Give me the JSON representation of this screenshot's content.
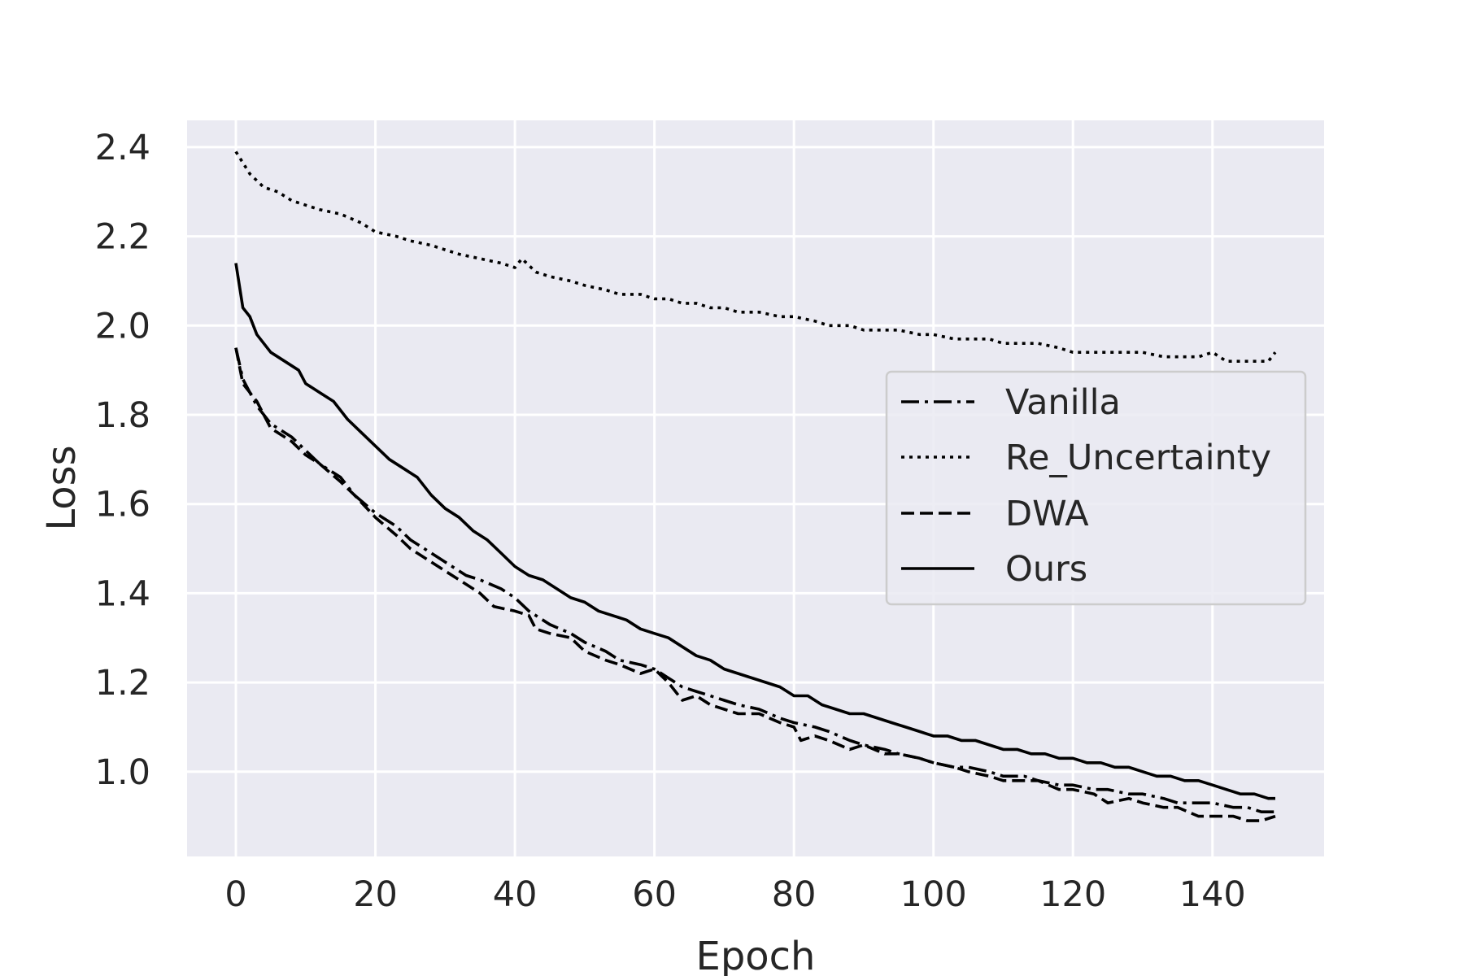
{
  "chart_data": {
    "type": "line",
    "title": "",
    "xlabel": "Epoch",
    "ylabel": "Loss",
    "xlim": [
      -7,
      156
    ],
    "ylim": [
      0.81,
      2.46
    ],
    "xticks": [
      0,
      20,
      40,
      60,
      80,
      100,
      120,
      140
    ],
    "yticks": [
      1.0,
      1.2,
      1.4,
      1.6,
      1.8,
      2.0,
      2.2,
      2.4
    ],
    "xtick_labels": [
      "0",
      "20",
      "40",
      "60",
      "80",
      "100",
      "120",
      "140"
    ],
    "ytick_labels": [
      "1.0",
      "1.2",
      "1.4",
      "1.6",
      "1.8",
      "2.0",
      "2.2",
      "2.4"
    ],
    "grid": true,
    "legend_position": "center-right",
    "colors": {
      "plot_background": "#eaeaf2",
      "grid": "#ffffff",
      "line": "#000000",
      "text": "#262626"
    },
    "series": [
      {
        "name": "Vanilla",
        "style": "dashdot",
        "points": [
          [
            0,
            1.95
          ],
          [
            1,
            1.88
          ],
          [
            3,
            1.82
          ],
          [
            5,
            1.78
          ],
          [
            8,
            1.75
          ],
          [
            10,
            1.72
          ],
          [
            12,
            1.69
          ],
          [
            15,
            1.66
          ],
          [
            17,
            1.62
          ],
          [
            20,
            1.58
          ],
          [
            23,
            1.55
          ],
          [
            25,
            1.52
          ],
          [
            28,
            1.49
          ],
          [
            30,
            1.47
          ],
          [
            33,
            1.44
          ],
          [
            35,
            1.43
          ],
          [
            38,
            1.41
          ],
          [
            40,
            1.39
          ],
          [
            42,
            1.36
          ],
          [
            45,
            1.33
          ],
          [
            48,
            1.31
          ],
          [
            50,
            1.29
          ],
          [
            53,
            1.27
          ],
          [
            55,
            1.25
          ],
          [
            58,
            1.24
          ],
          [
            60,
            1.23
          ],
          [
            62,
            1.21
          ],
          [
            64,
            1.19
          ],
          [
            66,
            1.18
          ],
          [
            68,
            1.17
          ],
          [
            70,
            1.16
          ],
          [
            72,
            1.15
          ],
          [
            75,
            1.14
          ],
          [
            78,
            1.12
          ],
          [
            80,
            1.11
          ],
          [
            83,
            1.1
          ],
          [
            85,
            1.09
          ],
          [
            88,
            1.07
          ],
          [
            90,
            1.06
          ],
          [
            93,
            1.05
          ],
          [
            95,
            1.04
          ],
          [
            98,
            1.03
          ],
          [
            100,
            1.02
          ],
          [
            103,
            1.01
          ],
          [
            105,
            1.01
          ],
          [
            108,
            1.0
          ],
          [
            110,
            0.99
          ],
          [
            113,
            0.99
          ],
          [
            115,
            0.98
          ],
          [
            118,
            0.97
          ],
          [
            120,
            0.97
          ],
          [
            123,
            0.96
          ],
          [
            125,
            0.96
          ],
          [
            128,
            0.95
          ],
          [
            130,
            0.95
          ],
          [
            133,
            0.94
          ],
          [
            135,
            0.93
          ],
          [
            138,
            0.93
          ],
          [
            140,
            0.93
          ],
          [
            143,
            0.92
          ],
          [
            145,
            0.92
          ],
          [
            147,
            0.91
          ],
          [
            149,
            0.91
          ]
        ]
      },
      {
        "name": "Re_Uncertainty",
        "style": "dotted",
        "points": [
          [
            0,
            2.39
          ],
          [
            2,
            2.34
          ],
          [
            4,
            2.31
          ],
          [
            6,
            2.3
          ],
          [
            8,
            2.28
          ],
          [
            10,
            2.27
          ],
          [
            12,
            2.26
          ],
          [
            15,
            2.25
          ],
          [
            18,
            2.23
          ],
          [
            20,
            2.21
          ],
          [
            23,
            2.2
          ],
          [
            25,
            2.19
          ],
          [
            28,
            2.18
          ],
          [
            30,
            2.17
          ],
          [
            32,
            2.16
          ],
          [
            35,
            2.15
          ],
          [
            38,
            2.14
          ],
          [
            40,
            2.13
          ],
          [
            41,
            2.15
          ],
          [
            43,
            2.12
          ],
          [
            45,
            2.11
          ],
          [
            48,
            2.1
          ],
          [
            50,
            2.09
          ],
          [
            53,
            2.08
          ],
          [
            55,
            2.07
          ],
          [
            58,
            2.07
          ],
          [
            60,
            2.06
          ],
          [
            62,
            2.06
          ],
          [
            64,
            2.05
          ],
          [
            66,
            2.05
          ],
          [
            68,
            2.04
          ],
          [
            70,
            2.04
          ],
          [
            72,
            2.03
          ],
          [
            75,
            2.03
          ],
          [
            78,
            2.02
          ],
          [
            80,
            2.02
          ],
          [
            83,
            2.01
          ],
          [
            85,
            2.0
          ],
          [
            88,
            2.0
          ],
          [
            90,
            1.99
          ],
          [
            93,
            1.99
          ],
          [
            95,
            1.99
          ],
          [
            98,
            1.98
          ],
          [
            100,
            1.98
          ],
          [
            103,
            1.97
          ],
          [
            105,
            1.97
          ],
          [
            108,
            1.97
          ],
          [
            110,
            1.96
          ],
          [
            113,
            1.96
          ],
          [
            115,
            1.96
          ],
          [
            118,
            1.95
          ],
          [
            120,
            1.94
          ],
          [
            123,
            1.94
          ],
          [
            125,
            1.94
          ],
          [
            128,
            1.94
          ],
          [
            130,
            1.94
          ],
          [
            133,
            1.93
          ],
          [
            135,
            1.93
          ],
          [
            138,
            1.93
          ],
          [
            140,
            1.94
          ],
          [
            142,
            1.92
          ],
          [
            144,
            1.92
          ],
          [
            146,
            1.92
          ],
          [
            148,
            1.92
          ],
          [
            149,
            1.94
          ]
        ]
      },
      {
        "name": "DWA",
        "style": "dashed",
        "points": [
          [
            0,
            1.95
          ],
          [
            1,
            1.87
          ],
          [
            3,
            1.83
          ],
          [
            5,
            1.77
          ],
          [
            8,
            1.74
          ],
          [
            10,
            1.71
          ],
          [
            12,
            1.69
          ],
          [
            15,
            1.65
          ],
          [
            17,
            1.62
          ],
          [
            20,
            1.57
          ],
          [
            23,
            1.53
          ],
          [
            25,
            1.5
          ],
          [
            28,
            1.47
          ],
          [
            30,
            1.45
          ],
          [
            33,
            1.42
          ],
          [
            35,
            1.4
          ],
          [
            37,
            1.37
          ],
          [
            40,
            1.36
          ],
          [
            42,
            1.35
          ],
          [
            43,
            1.32
          ],
          [
            45,
            1.31
          ],
          [
            48,
            1.3
          ],
          [
            50,
            1.27
          ],
          [
            53,
            1.25
          ],
          [
            55,
            1.24
          ],
          [
            58,
            1.22
          ],
          [
            60,
            1.23
          ],
          [
            62,
            1.2
          ],
          [
            64,
            1.16
          ],
          [
            66,
            1.17
          ],
          [
            68,
            1.15
          ],
          [
            70,
            1.14
          ],
          [
            72,
            1.13
          ],
          [
            75,
            1.13
          ],
          [
            78,
            1.11
          ],
          [
            80,
            1.1
          ],
          [
            81,
            1.07
          ],
          [
            83,
            1.08
          ],
          [
            85,
            1.07
          ],
          [
            88,
            1.05
          ],
          [
            90,
            1.06
          ],
          [
            93,
            1.04
          ],
          [
            95,
            1.04
          ],
          [
            98,
            1.03
          ],
          [
            100,
            1.02
          ],
          [
            103,
            1.01
          ],
          [
            105,
            1.0
          ],
          [
            108,
            0.99
          ],
          [
            110,
            0.98
          ],
          [
            113,
            0.98
          ],
          [
            115,
            0.98
          ],
          [
            118,
            0.96
          ],
          [
            120,
            0.96
          ],
          [
            123,
            0.95
          ],
          [
            125,
            0.93
          ],
          [
            128,
            0.94
          ],
          [
            130,
            0.93
          ],
          [
            133,
            0.92
          ],
          [
            135,
            0.92
          ],
          [
            138,
            0.9
          ],
          [
            140,
            0.9
          ],
          [
            143,
            0.9
          ],
          [
            145,
            0.89
          ],
          [
            147,
            0.89
          ],
          [
            149,
            0.9
          ]
        ]
      },
      {
        "name": "Ours",
        "style": "solid",
        "points": [
          [
            0,
            2.14
          ],
          [
            1,
            2.04
          ],
          [
            2,
            2.02
          ],
          [
            3,
            1.98
          ],
          [
            5,
            1.94
          ],
          [
            7,
            1.92
          ],
          [
            9,
            1.9
          ],
          [
            10,
            1.87
          ],
          [
            12,
            1.85
          ],
          [
            14,
            1.83
          ],
          [
            16,
            1.79
          ],
          [
            18,
            1.76
          ],
          [
            20,
            1.73
          ],
          [
            22,
            1.7
          ],
          [
            24,
            1.68
          ],
          [
            26,
            1.66
          ],
          [
            28,
            1.62
          ],
          [
            30,
            1.59
          ],
          [
            32,
            1.57
          ],
          [
            34,
            1.54
          ],
          [
            36,
            1.52
          ],
          [
            38,
            1.49
          ],
          [
            40,
            1.46
          ],
          [
            42,
            1.44
          ],
          [
            44,
            1.43
          ],
          [
            46,
            1.41
          ],
          [
            48,
            1.39
          ],
          [
            50,
            1.38
          ],
          [
            52,
            1.36
          ],
          [
            54,
            1.35
          ],
          [
            56,
            1.34
          ],
          [
            58,
            1.32
          ],
          [
            60,
            1.31
          ],
          [
            62,
            1.3
          ],
          [
            64,
            1.28
          ],
          [
            66,
            1.26
          ],
          [
            68,
            1.25
          ],
          [
            70,
            1.23
          ],
          [
            72,
            1.22
          ],
          [
            74,
            1.21
          ],
          [
            76,
            1.2
          ],
          [
            78,
            1.19
          ],
          [
            80,
            1.17
          ],
          [
            82,
            1.17
          ],
          [
            84,
            1.15
          ],
          [
            86,
            1.14
          ],
          [
            88,
            1.13
          ],
          [
            90,
            1.13
          ],
          [
            92,
            1.12
          ],
          [
            94,
            1.11
          ],
          [
            96,
            1.1
          ],
          [
            98,
            1.09
          ],
          [
            100,
            1.08
          ],
          [
            102,
            1.08
          ],
          [
            104,
            1.07
          ],
          [
            106,
            1.07
          ],
          [
            108,
            1.06
          ],
          [
            110,
            1.05
          ],
          [
            112,
            1.05
          ],
          [
            114,
            1.04
          ],
          [
            116,
            1.04
          ],
          [
            118,
            1.03
          ],
          [
            120,
            1.03
          ],
          [
            122,
            1.02
          ],
          [
            124,
            1.02
          ],
          [
            126,
            1.01
          ],
          [
            128,
            1.01
          ],
          [
            130,
            1.0
          ],
          [
            132,
            0.99
          ],
          [
            134,
            0.99
          ],
          [
            136,
            0.98
          ],
          [
            138,
            0.98
          ],
          [
            140,
            0.97
          ],
          [
            142,
            0.96
          ],
          [
            144,
            0.95
          ],
          [
            146,
            0.95
          ],
          [
            148,
            0.94
          ],
          [
            149,
            0.94
          ]
        ]
      }
    ]
  }
}
